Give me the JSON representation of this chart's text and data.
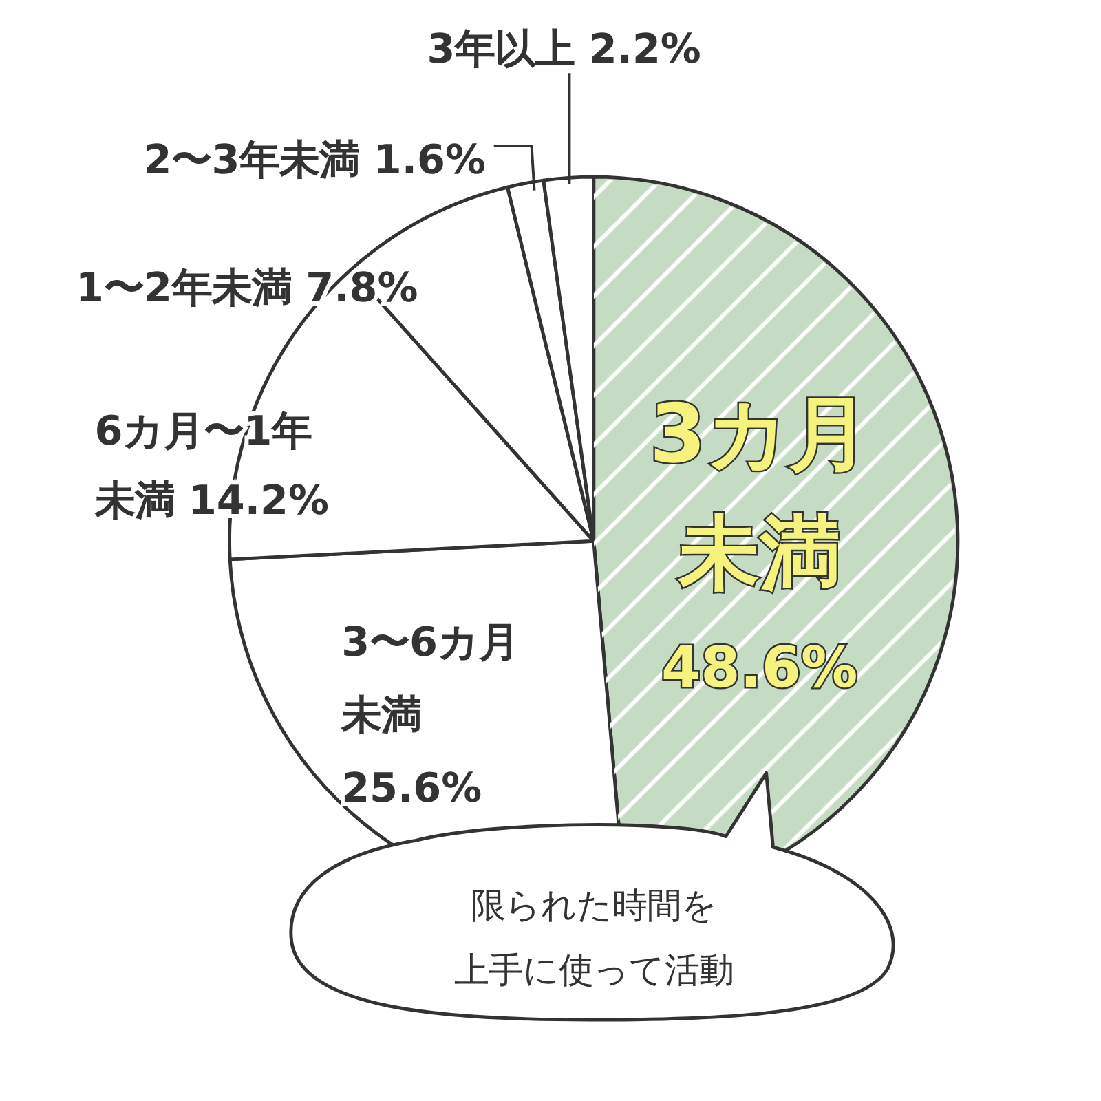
{
  "chart_data": {
    "type": "pie",
    "categories": [
      "3カ月未満",
      "3〜6カ月未満",
      "6カ月〜1年未満",
      "1〜2年未満",
      "2〜3年未満",
      "3年以上"
    ],
    "values": [
      48.6,
      25.6,
      14.2,
      7.8,
      1.6,
      2.2
    ],
    "value_labels": [
      "48.6%",
      "25.6%",
      "14.2%",
      "7.8%",
      "1.6%",
      "2.2%"
    ],
    "colors": [
      "#c6dbc3",
      "#ffffff",
      "#ffffff",
      "#ffffff",
      "#ffffff",
      "#ffffff"
    ],
    "annotations": [
      "限られた時間を上手に使って活動"
    ]
  }
}
